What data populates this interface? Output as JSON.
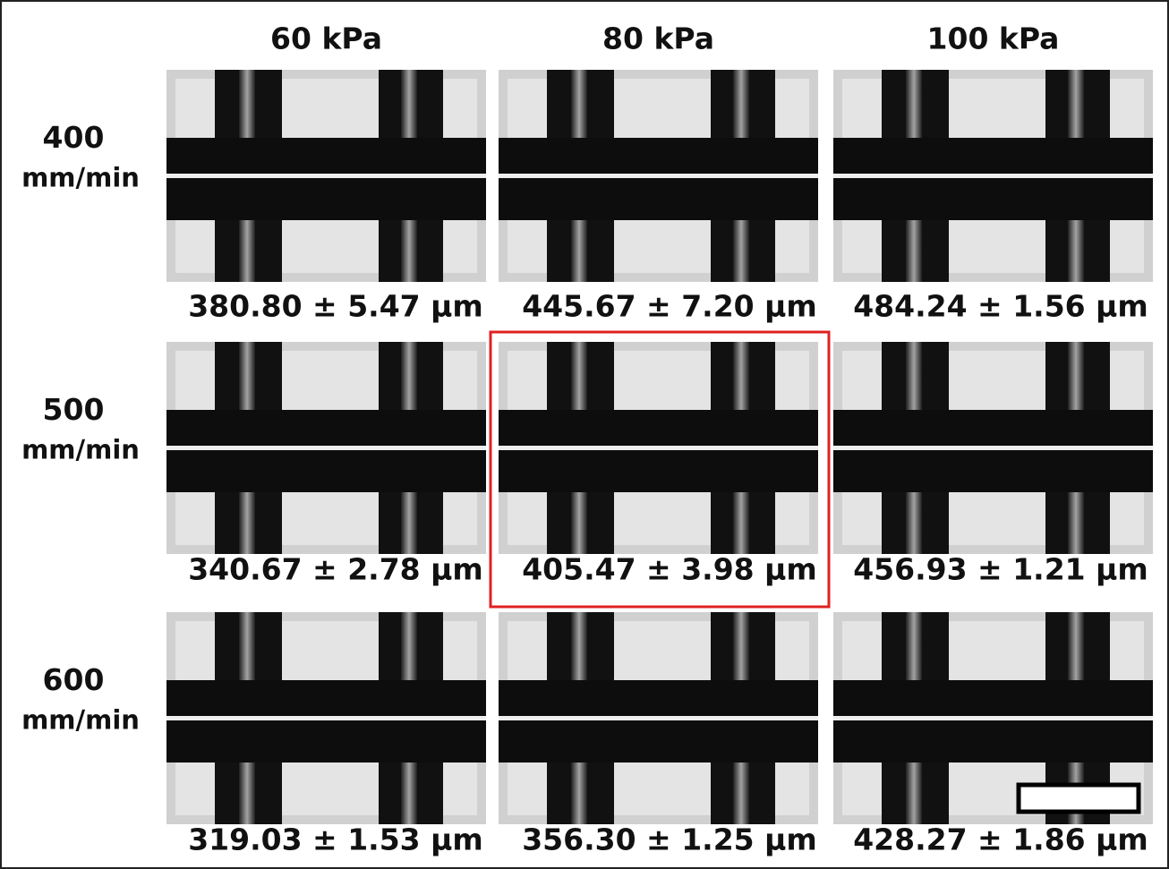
{
  "column_headers": [
    "60 kPa",
    "80 kPa",
    "100 kPa"
  ],
  "rows": [
    {
      "label": "400",
      "unit": "mm/min",
      "cells": [
        "380.80 ± 5.47 μm",
        "445.67 ± 7.20 μm",
        "484.24 ±  1.56 μm"
      ]
    },
    {
      "label": "500",
      "unit": "mm/min",
      "cells": [
        "340.67 ± 2.78 μm",
        "405.47 ± 3.98 μm",
        "456.93 ± 1.21 μm"
      ]
    },
    {
      "label": "600",
      "unit": "mm/min",
      "cells": [
        "319.03 ± 1.53 μm",
        "356.30 ± 1.25 μm",
        "428.27 ± 1.86 μm"
      ]
    }
  ]
}
